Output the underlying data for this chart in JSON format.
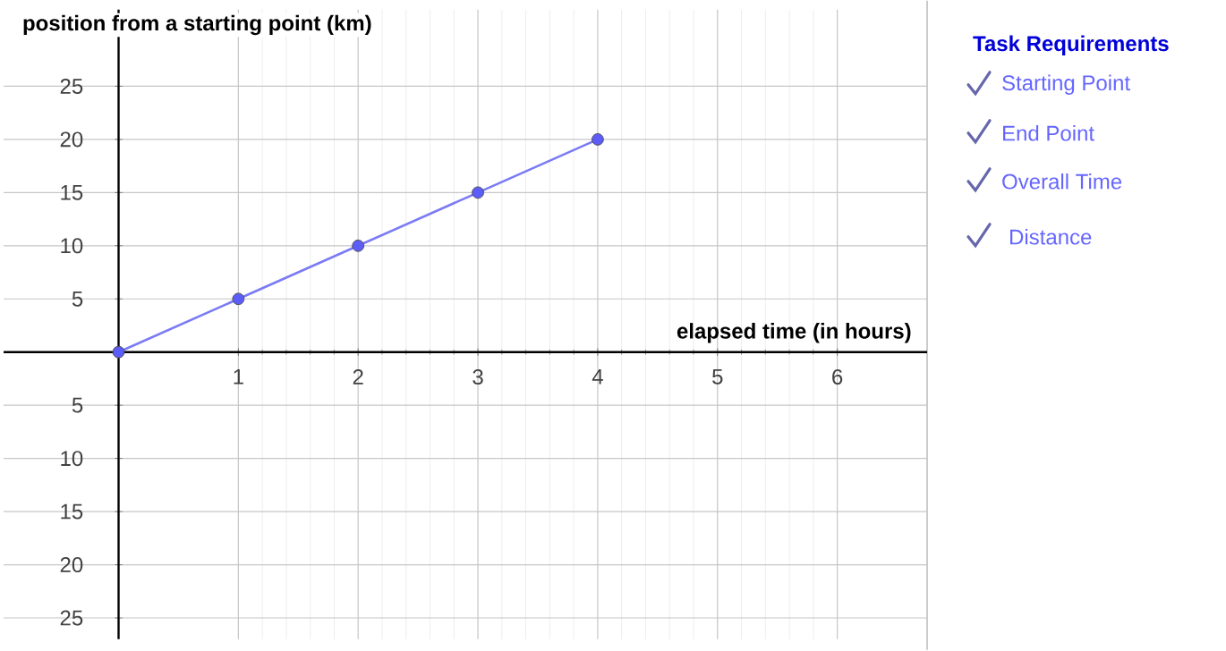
{
  "chart_data": [
    {
      "type": "line",
      "xlabel": "elapsed time (in hours)",
      "ylabel": "position from a starting point (km)",
      "x": [
        0,
        1,
        2,
        3,
        4
      ],
      "series": [
        {
          "color": "#7b7bf5",
          "values": [
            0,
            5,
            10,
            15,
            20
          ]
        }
      ],
      "marker": "circle",
      "xlim": [
        -0.96,
        6.75
      ],
      "ylim": [
        -27,
        32.2
      ],
      "xticks": [
        1,
        2,
        3,
        4,
        5,
        6
      ],
      "yticks": [
        {
          "value": -25,
          "label": "25"
        },
        {
          "value": -20,
          "label": "20"
        },
        {
          "value": -15,
          "label": "15"
        },
        {
          "value": -10,
          "label": "10"
        },
        {
          "value": -5,
          "label": "5"
        },
        5,
        10,
        15,
        20,
        25
      ],
      "grid": true
    },
    {
      "type": "other",
      "title": "Task Requirements",
      "annotations": [
        "Starting Point",
        "End Point",
        "Overall Time",
        "Distance"
      ]
    }
  ]
}
